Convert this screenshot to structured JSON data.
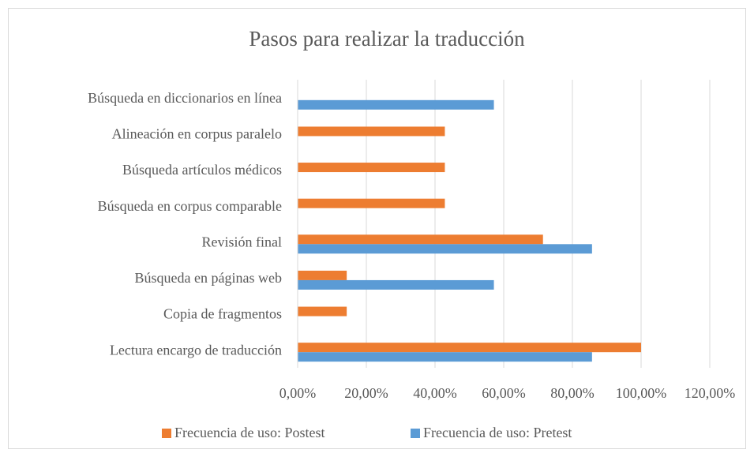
{
  "chart_data": {
    "type": "barh",
    "title": "Pasos para realizar la traducción",
    "categories": [
      "Búsqueda en diccionarios en línea",
      "Alineación en corpus paralelo",
      "Búsqueda artículos médicos",
      "Búsqueda en corpus comparable",
      "Revisión final",
      "Búsqueda en páginas web",
      "Copia de fragmentos",
      "Lectura encargo de traducción"
    ],
    "series": [
      {
        "name": "Frecuencia de uso: Postest",
        "color": "#ed7d31",
        "values": [
          0,
          42.86,
          42.86,
          42.86,
          71.43,
          14.29,
          14.29,
          100
        ]
      },
      {
        "name": "Frecuencia de uso: Pretest",
        "color": "#5b9bd5",
        "values": [
          57.14,
          0,
          0,
          0,
          85.71,
          57.14,
          0,
          85.71
        ]
      }
    ],
    "xlim": [
      0,
      120
    ],
    "xticks": [
      {
        "value": 0,
        "label": "0,00%"
      },
      {
        "value": 20,
        "label": "20,00%"
      },
      {
        "value": 40,
        "label": "40,00%"
      },
      {
        "value": 60,
        "label": "60,00%"
      },
      {
        "value": 80,
        "label": "80,00%"
      },
      {
        "value": 100,
        "label": "100,00%"
      },
      {
        "value": 120,
        "label": "120,00%"
      }
    ],
    "grid": true,
    "legend": "bottom"
  }
}
